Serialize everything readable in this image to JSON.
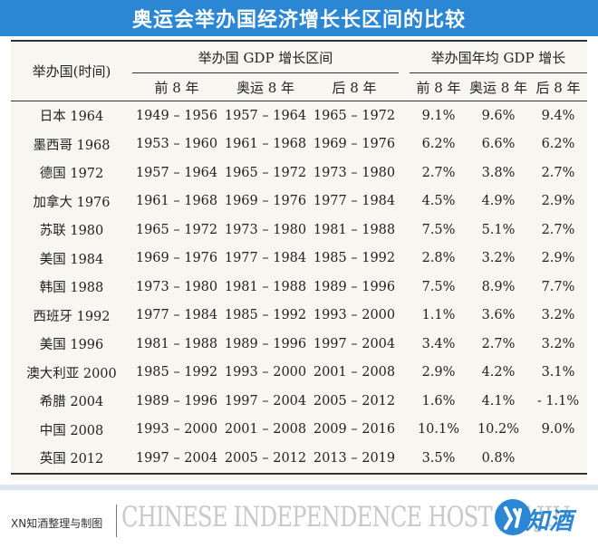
{
  "title": "奥运会举办国经济增长长区间的比较",
  "table": {
    "host_header": "举办国(时间)",
    "group1_header": "举办国 GDP 增长区间",
    "group2_header": "举办国年均 GDP 增长",
    "sub_headers": [
      "前 8 年",
      "奥运 8 年",
      "后 8 年",
      "前 8 年",
      "奥运 8 年",
      "后 8 年"
    ],
    "rows": [
      [
        "日本 1964",
        "1949 – 1956",
        "1957 – 1964",
        "1965 – 1972",
        "9.1%",
        "9.6%",
        "9.4%"
      ],
      [
        "墨西哥 1968",
        "1953 – 1960",
        "1961 – 1968",
        "1969 – 1976",
        "6.2%",
        "6.6%",
        "6.2%"
      ],
      [
        "德国 1972",
        "1957 – 1964",
        "1965 – 1972",
        "1973 – 1980",
        "2.7%",
        "3.8%",
        "2.7%"
      ],
      [
        "加拿大 1976",
        "1961 – 1968",
        "1969 – 1976",
        "1977 – 1984",
        "4.5%",
        "4.9%",
        "2.9%"
      ],
      [
        "苏联 1980",
        "1965 – 1972",
        "1973 – 1980",
        "1981 – 1988",
        "7.5%",
        "5.1%",
        "2.7%"
      ],
      [
        "美国 1984",
        "1969 – 1976",
        "1977 – 1984",
        "1985 – 1992",
        "2.8%",
        "3.2%",
        "2.9%"
      ],
      [
        "韩国 1988",
        "1973 – 1980",
        "1981 – 1988",
        "1989 – 1996",
        "7.5%",
        "8.9%",
        "7.7%"
      ],
      [
        "西班牙 1992",
        "1977 – 1984",
        "1985 – 1992",
        "1993 – 2000",
        "1.1%",
        "3.6%",
        "3.2%"
      ],
      [
        "美国 1996",
        "1981 – 1988",
        "1989 – 1996",
        "1997 – 2004",
        "3.4%",
        "2.7%",
        "3.2%"
      ],
      [
        "澳大利亚 2000",
        "1985 – 1992",
        "1993 – 2000",
        "2001 – 2008",
        "2.9%",
        "4.2%",
        "3.1%"
      ],
      [
        "希腊 2004",
        "1989 – 1996",
        "1997 – 2004",
        "2005 – 2012",
        "1.6%",
        "4.1%",
        "- 1.1%"
      ],
      [
        "中国 2008",
        "1993 – 2000",
        "2001 – 2008",
        "2009 – 2016",
        "10.1%",
        "10.2%",
        "9.0%"
      ],
      [
        "英国 2012",
        "1997 – 2004",
        "2005 – 2012",
        "2013 – 2019",
        "3.5%",
        "0.8%",
        ""
      ]
    ]
  },
  "footer": {
    "credit": "XN知酒整理与制图",
    "watermark": "CHINESE INDEPENDENCE HOST OF JIU",
    "logo_text": "知酒"
  },
  "colors": {
    "banner": "#2b86d4",
    "table_bg": "#f7f6f1"
  }
}
